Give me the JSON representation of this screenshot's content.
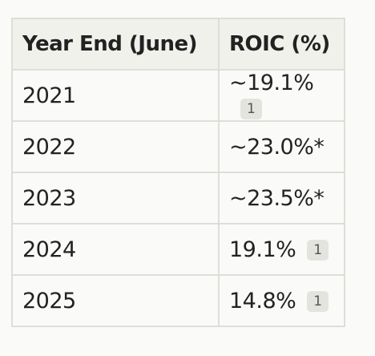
{
  "table": {
    "headers": [
      "Year End (June)",
      "ROIC (%)"
    ],
    "rows": [
      {
        "year": "2021",
        "roic": "~19.1%",
        "citation": "1"
      },
      {
        "year": "2022",
        "roic": "~23.0%*"
      },
      {
        "year": "2023",
        "roic": "~23.5%*"
      },
      {
        "year": "2024",
        "roic": "19.1%",
        "citation": "1"
      },
      {
        "year": "2025",
        "roic": "14.8%",
        "citation": "1"
      }
    ]
  }
}
